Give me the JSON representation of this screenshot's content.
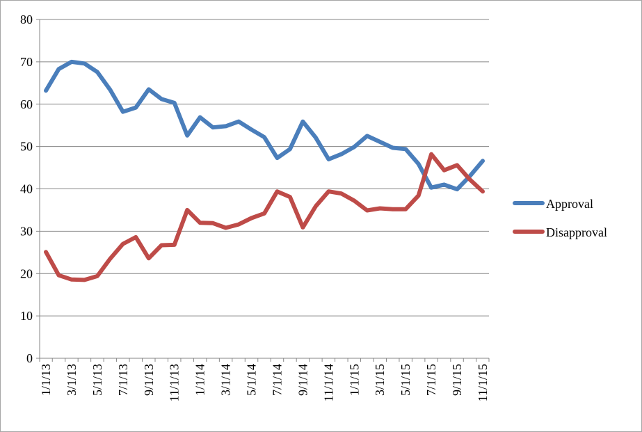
{
  "chart_data": {
    "type": "line",
    "title": "",
    "xlabel": "",
    "ylabel": "",
    "ylim": [
      0,
      80
    ],
    "yticks": [
      0,
      10,
      20,
      30,
      40,
      50,
      60,
      70,
      80
    ],
    "grid": true,
    "legend_position": "right",
    "x": [
      "1/1/13",
      "2/1/13",
      "3/1/13",
      "4/1/13",
      "5/1/13",
      "6/1/13",
      "7/1/13",
      "8/1/13",
      "9/1/13",
      "10/1/13",
      "11/1/13",
      "12/1/13",
      "1/1/14",
      "2/1/14",
      "3/1/14",
      "4/1/14",
      "5/1/14",
      "6/1/14",
      "7/1/14",
      "8/1/14",
      "9/1/14",
      "10/1/14",
      "11/1/14",
      "12/1/14",
      "1/1/15",
      "2/1/15",
      "3/1/15",
      "4/1/15",
      "5/1/15",
      "6/1/15",
      "7/1/15",
      "8/1/15",
      "9/1/15",
      "10/1/15",
      "11/1/15"
    ],
    "x_tick_labels": [
      "1/1/13",
      "3/1/13",
      "5/1/13",
      "7/1/13",
      "9/1/13",
      "11/1/13",
      "1/1/14",
      "3/1/14",
      "5/1/14",
      "7/1/14",
      "9/1/14",
      "11/1/14",
      "1/1/15",
      "3/1/15",
      "5/1/15",
      "7/1/15",
      "9/1/15",
      "11/1/15"
    ],
    "series": [
      {
        "name": "Approval",
        "color": "#4a7ebb",
        "values": [
          63.2,
          68.3,
          70.0,
          69.6,
          67.6,
          63.4,
          58.2,
          59.2,
          63.5,
          61.2,
          60.3,
          52.6,
          56.9,
          54.5,
          54.8,
          55.9,
          54.0,
          52.2,
          47.3,
          49.4,
          55.9,
          52.1,
          47.0,
          48.2,
          49.9,
          52.5,
          51.1,
          49.7,
          49.4,
          45.9,
          40.3,
          41.0,
          39.9,
          43.0,
          46.6
        ]
      },
      {
        "name": "Disapproval",
        "color": "#be4b48",
        "values": [
          25.1,
          19.6,
          18.6,
          18.5,
          19.4,
          23.5,
          27.0,
          28.6,
          23.6,
          26.7,
          26.8,
          35.0,
          32.0,
          31.9,
          30.8,
          31.6,
          33.1,
          34.2,
          39.4,
          38.1,
          30.9,
          35.9,
          39.4,
          38.9,
          37.2,
          34.9,
          35.4,
          35.2,
          35.2,
          38.4,
          48.2,
          44.4,
          45.6,
          42.2,
          39.4
        ]
      }
    ]
  }
}
